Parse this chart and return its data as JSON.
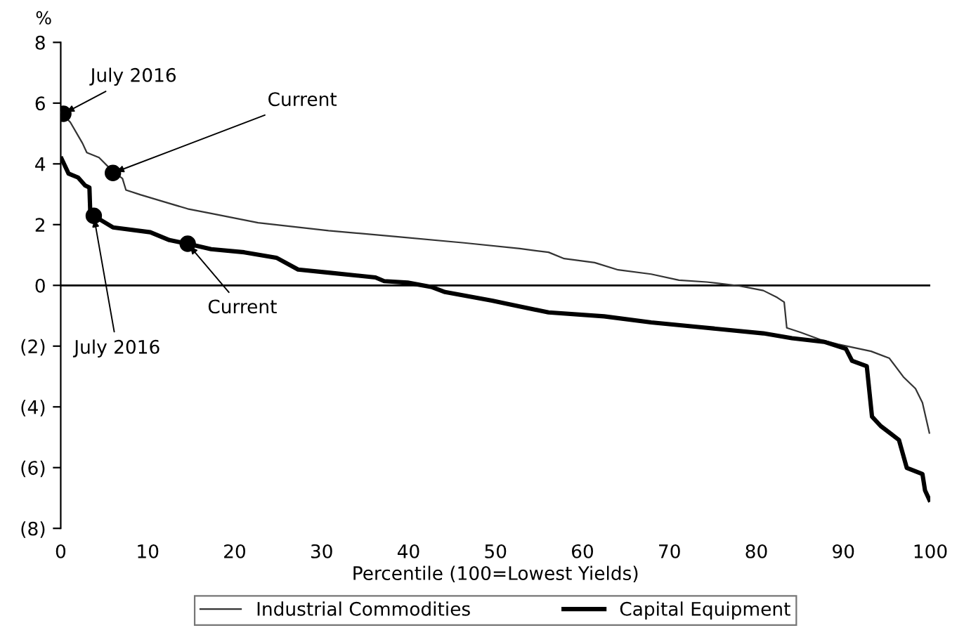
{
  "chart_data": {
    "type": "line",
    "xlabel": "Percentile (100=Lowest Yields)",
    "ylabel": "%",
    "xlim": [
      0,
      100
    ],
    "xticks": [
      0,
      10,
      20,
      30,
      40,
      50,
      60,
      70,
      80,
      90,
      100
    ],
    "ylim": [
      -8,
      8
    ],
    "yticks": [
      {
        "value": -8,
        "label": "(8)"
      },
      {
        "value": -6,
        "label": "(6)"
      },
      {
        "value": -4,
        "label": "(4)"
      },
      {
        "value": -2,
        "label": "(2)"
      },
      0,
      2,
      4,
      6,
      8
    ],
    "grid": false,
    "legend": "bottom",
    "marker": "none",
    "line_style": "solid",
    "ref_lines": [
      {
        "axis": "y",
        "value": 0,
        "color": "#000000"
      }
    ],
    "series": [
      {
        "name": "Industrial Commodities",
        "color": "#333333",
        "x": [
          0,
          1.1,
          2.5,
          3.0,
          4.4,
          6.0,
          7.1,
          7.5,
          9.2,
          11.9,
          14.6,
          17.3,
          22.7,
          30.8,
          38.8,
          46.4,
          52.8,
          56.1,
          57.9,
          61.4,
          64.1,
          67.9,
          71.1,
          74.3,
          78.1,
          80.8,
          82.4,
          83.2,
          83.5,
          85.1,
          87.3,
          89.4,
          93.2,
          95.3,
          96.9,
          98.3,
          99.1,
          99.9
        ],
        "values": [
          5.7,
          5.37,
          4.68,
          4.37,
          4.21,
          3.75,
          3.52,
          3.14,
          2.98,
          2.75,
          2.52,
          2.37,
          2.06,
          1.8,
          1.6,
          1.4,
          1.21,
          1.09,
          0.88,
          0.75,
          0.51,
          0.37,
          0.17,
          0.11,
          -0.02,
          -0.17,
          -0.4,
          -0.55,
          -1.4,
          -1.55,
          -1.78,
          -1.94,
          -2.17,
          -2.4,
          -3.01,
          -3.4,
          -3.86,
          -4.86
        ]
      },
      {
        "name": "Capital Equipment",
        "color": "#000000",
        "x": [
          0.1,
          0.9,
          2.0,
          2.8,
          3.3,
          3.4,
          3.8,
          6.0,
          10.3,
          12.5,
          14.6,
          17.3,
          21.1,
          24.8,
          27.3,
          30.8,
          36.2,
          37.2,
          39.9,
          42.6,
          44.2,
          49.6,
          51.7,
          56.1,
          62.5,
          67.9,
          73.3,
          80.8,
          84.1,
          87.8,
          90.3,
          91.0,
          92.7,
          93.3,
          94.3,
          96.4,
          97.3,
          99.1,
          99.4,
          99.9
        ],
        "values": [
          4.17,
          3.68,
          3.55,
          3.29,
          3.22,
          2.37,
          2.29,
          1.91,
          1.75,
          1.49,
          1.37,
          1.19,
          1.09,
          0.91,
          0.52,
          0.42,
          0.26,
          0.14,
          0.09,
          -0.05,
          -0.22,
          -0.5,
          -0.63,
          -0.89,
          -1.02,
          -1.22,
          -1.37,
          -1.58,
          -1.74,
          -1.86,
          -2.09,
          -2.48,
          -2.66,
          -4.32,
          -4.63,
          -5.09,
          -6.01,
          -6.21,
          -6.75,
          -7.06
        ]
      },
      {
        "type": "scatter",
        "color": "#000000",
        "marker": "circle",
        "x": [
          0.3,
          6.0,
          3.8,
          14.6
        ],
        "values": [
          5.65,
          3.7,
          2.29,
          1.37
        ]
      }
    ],
    "annotations": [
      {
        "text": "July 2016",
        "x": 0.3,
        "y": 5.65
      },
      {
        "text": "Current",
        "x": 6.0,
        "y": 3.7
      },
      {
        "text": "July 2016",
        "x": 3.8,
        "y": 2.29
      },
      {
        "text": "Current",
        "x": 14.6,
        "y": 1.37
      }
    ]
  }
}
